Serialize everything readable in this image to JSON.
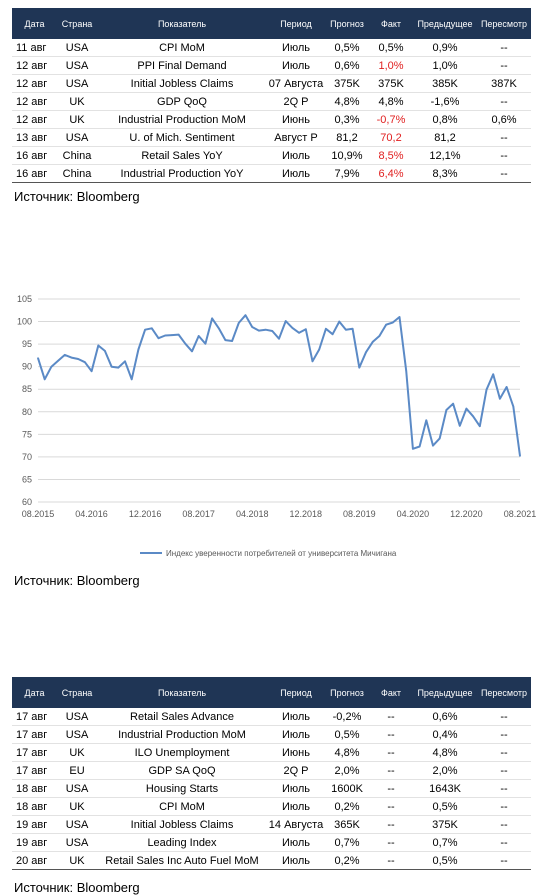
{
  "table1": {
    "headers": [
      "Дата",
      "Страна",
      "Показатель",
      "Период",
      "Прогноз",
      "Факт",
      "Предыдущее",
      "Пересмотр"
    ],
    "rows": [
      {
        "date": "11 авг",
        "country": "USA",
        "indicator": "CPI MoM",
        "period": "Июль",
        "forecast": "0,5%",
        "actual": "0,5%",
        "actual_red": false,
        "previous": "0,9%",
        "revision": "--"
      },
      {
        "date": "12 авг",
        "country": "USA",
        "indicator": "PPI Final Demand",
        "period": "Июль",
        "forecast": "0,6%",
        "actual": "1,0%",
        "actual_red": true,
        "previous": "1,0%",
        "revision": "--"
      },
      {
        "date": "12 авг",
        "country": "USA",
        "indicator": "Initial Jobless Claims",
        "period": "07 Августа",
        "forecast": "375K",
        "actual": "375K",
        "actual_red": false,
        "previous": "385K",
        "revision": "387K"
      },
      {
        "date": "12 авг",
        "country": "UK",
        "indicator": "GDP QoQ",
        "period": "2Q P",
        "forecast": "4,8%",
        "actual": "4,8%",
        "actual_red": false,
        "previous": "-1,6%",
        "revision": "--"
      },
      {
        "date": "12 авг",
        "country": "UK",
        "indicator": "Industrial Production MoM",
        "period": "Июнь",
        "forecast": "0,3%",
        "actual": "-0,7%",
        "actual_red": true,
        "previous": "0,8%",
        "revision": "0,6%"
      },
      {
        "date": "13 авг",
        "country": "USA",
        "indicator": "U. of Mich. Sentiment",
        "period": "Август P",
        "forecast": "81,2",
        "actual": "70,2",
        "actual_red": true,
        "previous": "81,2",
        "revision": "--"
      },
      {
        "date": "16 авг",
        "country": "China",
        "indicator": "Retail Sales YoY",
        "period": "Июль",
        "forecast": "10,9%",
        "actual": "8,5%",
        "actual_red": true,
        "previous": "12,1%",
        "revision": "--"
      },
      {
        "date": "16 авг",
        "country": "China",
        "indicator": "Industrial Production YoY",
        "period": "Июль",
        "forecast": "7,9%",
        "actual": "6,4%",
        "actual_red": true,
        "previous": "8,3%",
        "revision": "--"
      }
    ]
  },
  "source_label": "Источник: Bloomberg",
  "chart_data": {
    "type": "line",
    "title": "",
    "ylim": [
      60,
      105
    ],
    "y_ticks": [
      "60",
      "65",
      "70",
      "75",
      "80",
      "85",
      "90",
      "95",
      "100",
      "105"
    ],
    "x_ticks": [
      "08.2015",
      "04.2016",
      "12.2016",
      "08.2017",
      "04.2018",
      "12.2018",
      "08.2019",
      "04.2020",
      "12.2020",
      "08.2021"
    ],
    "grid": true,
    "legend_position": "bottom",
    "line_color": "#5b8ac6",
    "series": [
      {
        "name": "Индекс уверенности потребителей от университета Мичигана",
        "x": [
          "08.2015",
          "09.2015",
          "10.2015",
          "11.2015",
          "12.2015",
          "01.2016",
          "02.2016",
          "03.2016",
          "04.2016",
          "05.2016",
          "06.2016",
          "07.2016",
          "08.2016",
          "09.2016",
          "10.2016",
          "11.2016",
          "12.2016",
          "01.2017",
          "02.2017",
          "03.2017",
          "04.2017",
          "05.2017",
          "06.2017",
          "07.2017",
          "08.2017",
          "09.2017",
          "10.2017",
          "11.2017",
          "12.2017",
          "01.2018",
          "02.2018",
          "03.2018",
          "04.2018",
          "05.2018",
          "06.2018",
          "07.2018",
          "08.2018",
          "09.2018",
          "10.2018",
          "11.2018",
          "12.2018",
          "01.2019",
          "02.2019",
          "03.2019",
          "04.2019",
          "05.2019",
          "06.2019",
          "07.2019",
          "08.2019",
          "09.2019",
          "10.2019",
          "11.2019",
          "12.2019",
          "01.2020",
          "02.2020",
          "03.2020",
          "04.2020",
          "05.2020",
          "06.2020",
          "07.2020",
          "08.2020",
          "09.2020",
          "10.2020",
          "11.2020",
          "12.2020",
          "01.2021",
          "02.2021",
          "03.2021",
          "04.2021",
          "05.2021",
          "06.2021",
          "07.2021",
          "08.2021"
        ],
        "values": [
          91.9,
          87.2,
          90.0,
          91.3,
          92.6,
          92.0,
          91.7,
          91.0,
          89.0,
          94.7,
          93.5,
          90.0,
          89.8,
          91.2,
          87.2,
          93.8,
          98.2,
          98.5,
          96.3,
          96.9,
          97.0,
          97.1,
          95.1,
          93.4,
          96.8,
          95.1,
          100.7,
          98.5,
          95.9,
          95.7,
          99.7,
          101.4,
          98.8,
          98.0,
          98.2,
          97.9,
          96.2,
          100.1,
          98.6,
          97.5,
          98.3,
          91.2,
          93.8,
          98.4,
          97.2,
          100.0,
          98.2,
          98.4,
          89.8,
          93.2,
          95.5,
          96.8,
          99.3,
          99.8,
          101.0,
          89.1,
          71.8,
          72.3,
          78.1,
          72.5,
          74.1,
          80.4,
          81.8,
          76.9,
          80.7,
          79.0,
          76.8,
          84.9,
          88.3,
          82.9,
          85.5,
          81.2,
          70.2
        ]
      }
    ]
  },
  "table2": {
    "headers": [
      "Дата",
      "Страна",
      "Показатель",
      "Период",
      "Прогноз",
      "Факт",
      "Предыдущее",
      "Пересмотр"
    ],
    "rows": [
      {
        "date": "17 авг",
        "country": "USA",
        "indicator": "Retail Sales Advance",
        "period": "Июль",
        "forecast": "-0,2%",
        "actual": "--",
        "previous": "0,6%",
        "revision": "--"
      },
      {
        "date": "17 авг",
        "country": "USA",
        "indicator": "Industrial Production MoM",
        "period": "Июль",
        "forecast": "0,5%",
        "actual": "--",
        "previous": "0,4%",
        "revision": "--"
      },
      {
        "date": "17 авг",
        "country": "UK",
        "indicator": "ILO Unemployment",
        "period": "Июнь",
        "forecast": "4,8%",
        "actual": "--",
        "previous": "4,8%",
        "revision": "--"
      },
      {
        "date": "17 авг",
        "country": "EU",
        "indicator": "GDP SA QoQ",
        "period": "2Q P",
        "forecast": "2,0%",
        "actual": "--",
        "previous": "2,0%",
        "revision": "--"
      },
      {
        "date": "18 авг",
        "country": "USA",
        "indicator": "Housing Starts",
        "period": "Июль",
        "forecast": "1600K",
        "actual": "--",
        "previous": "1643K",
        "revision": "--"
      },
      {
        "date": "18 авг",
        "country": "UK",
        "indicator": "CPI MoM",
        "period": "Июль",
        "forecast": "0,2%",
        "actual": "--",
        "previous": "0,5%",
        "revision": "--"
      },
      {
        "date": "19 авг",
        "country": "USA",
        "indicator": "Initial Jobless Claims",
        "period": "14 Августа",
        "forecast": "365K",
        "actual": "--",
        "previous": "375K",
        "revision": "--"
      },
      {
        "date": "19 авг",
        "country": "USA",
        "indicator": "Leading Index",
        "period": "Июль",
        "forecast": "0,7%",
        "actual": "--",
        "previous": "0,7%",
        "revision": "--"
      },
      {
        "date": "20 авг",
        "country": "UK",
        "indicator": "Retail Sales Inc Auto Fuel MoM",
        "period": "Июль",
        "forecast": "0,2%",
        "actual": "--",
        "previous": "0,5%",
        "revision": "--"
      }
    ]
  }
}
